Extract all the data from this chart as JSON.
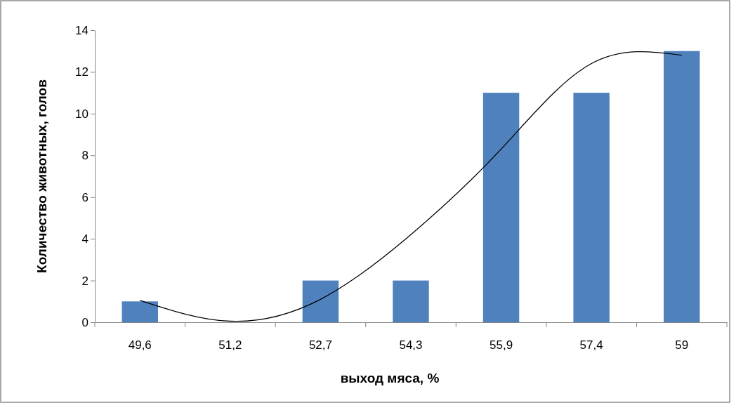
{
  "chart_data": {
    "type": "bar",
    "xlabel": "выход мяса, %",
    "ylabel": "Количество животных, голов",
    "categories": [
      "49,6",
      "51,2",
      "52,7",
      "54,3",
      "55,9",
      "57,4",
      "59"
    ],
    "ylim": [
      0,
      14
    ],
    "yticks": [
      0,
      2,
      4,
      6,
      8,
      10,
      12,
      14
    ],
    "grid": false,
    "series": [
      {
        "color": "#4f81bd",
        "values": [
          1,
          0,
          2,
          2,
          11,
          11,
          13
        ]
      },
      {
        "type": "line",
        "color": "#000000",
        "x": [
          "49,6",
          "51,2",
          "52,7",
          "54,3",
          "55,9",
          "57,4",
          "59"
        ],
        "values": [
          1.05,
          0.05,
          1.1,
          4.2,
          8.3,
          12.4,
          12.8
        ]
      }
    ]
  }
}
